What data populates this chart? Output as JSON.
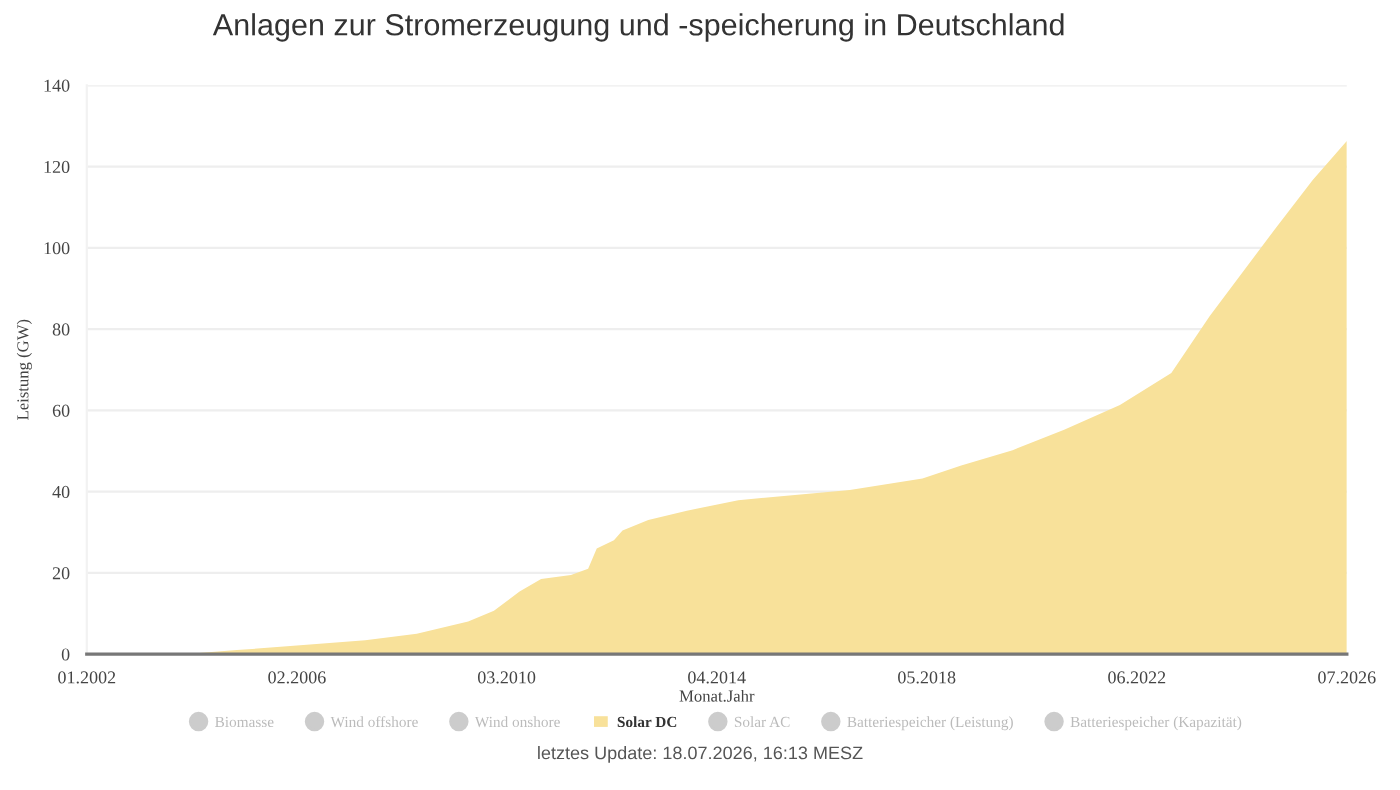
{
  "chart_data": {
    "type": "area",
    "title": "Anlagen zur Stromerzeugung und -speicherung in Deutschland",
    "xlabel": "Monat.Jahr",
    "ylabel": "Leistung (GW)",
    "annotations": [
      "letztes Update: 18.07.2026, 16:13 MESZ"
    ],
    "x": [
      "2002-01",
      "2004-01",
      "2004-12",
      "2006-02",
      "2007-06",
      "2008-06",
      "2009-06",
      "2009-12",
      "2010-06",
      "2010-11",
      "2011-06",
      "2011-10",
      "2011-12",
      "2012-04",
      "2012-06",
      "2012-12",
      "2013-09",
      "2014-09",
      "2016-11",
      "2018-04",
      "2019-01",
      "2020-01",
      "2021-01",
      "2022-02",
      "2023-02",
      "2023-11",
      "2025-02",
      "2025-11",
      "2026-07"
    ],
    "series": [
      {
        "name": "Biomasse",
        "color": "#cccccc",
        "type": "line",
        "values": [
          null,
          null,
          null,
          null,
          null,
          null,
          null,
          null,
          null,
          null,
          null,
          null,
          null,
          null,
          null,
          null,
          null,
          null,
          null,
          null,
          null,
          null,
          null,
          null,
          null,
          null,
          null,
          null,
          null
        ]
      },
      {
        "name": "Wind offshore",
        "color": "#cccccc",
        "type": "line",
        "values": [
          null,
          null,
          null,
          null,
          null,
          null,
          null,
          null,
          null,
          null,
          null,
          null,
          null,
          null,
          null,
          null,
          null,
          null,
          null,
          null,
          null,
          null,
          null,
          null,
          null,
          null,
          null,
          null,
          null
        ]
      },
      {
        "name": "Wind onshore",
        "color": "#cccccc",
        "type": "line",
        "values": [
          null,
          null,
          null,
          null,
          null,
          null,
          null,
          null,
          null,
          null,
          null,
          null,
          null,
          null,
          null,
          null,
          null,
          null,
          null,
          null,
          null,
          null,
          null,
          null,
          null,
          null,
          null,
          null,
          null
        ]
      },
      {
        "name": "Solar DC",
        "color": "#f8e19a",
        "values": [
          0,
          0.1,
          1,
          2.1,
          3.4,
          5,
          8,
          10.7,
          15.4,
          18.5,
          19.5,
          21,
          26,
          28,
          30.4,
          33,
          35.3,
          37.9,
          40.4,
          43.2,
          46.4,
          50.2,
          55.2,
          61.3,
          69.2,
          83.2,
          104.4,
          116.7,
          126.3
        ]
      },
      {
        "name": "Solar AC",
        "color": "#cccccc",
        "type": "line",
        "values": [
          null,
          null,
          null,
          null,
          null,
          null,
          null,
          null,
          null,
          null,
          null,
          null,
          null,
          null,
          null,
          null,
          null,
          null,
          null,
          null,
          null,
          null,
          null,
          null,
          null,
          null,
          null,
          null,
          null
        ]
      },
      {
        "name": "Batteriespeicher (Leistung)",
        "color": "#cccccc",
        "type": "line",
        "values": [
          null,
          null,
          null,
          null,
          null,
          null,
          null,
          null,
          null,
          null,
          null,
          null,
          null,
          null,
          null,
          null,
          null,
          null,
          null,
          null,
          null,
          null,
          null,
          null,
          null,
          null,
          null,
          null,
          null
        ]
      },
      {
        "name": "Batteriespeicher (Kapazität)",
        "color": "#cccccc",
        "type": "line",
        "values": [
          null,
          null,
          null,
          null,
          null,
          null,
          null,
          null,
          null,
          null,
          null,
          null,
          null,
          null,
          null,
          null,
          null,
          null,
          null,
          null,
          null,
          null,
          null,
          null,
          null,
          null,
          null,
          null,
          null
        ]
      }
    ],
    "xlim": [
      "2002-01",
      "2026-07"
    ],
    "xticks": [
      {
        "value": "2002-01",
        "label": "01.2002"
      },
      {
        "value": "2006-02",
        "label": "02.2006"
      },
      {
        "value": "2010-03",
        "label": "03.2010"
      },
      {
        "value": "2014-04",
        "label": "04.2014"
      },
      {
        "value": "2018-05",
        "label": "05.2018"
      },
      {
        "value": "2022-06",
        "label": "06.2022"
      },
      {
        "value": "2026-07",
        "label": "07.2026"
      }
    ],
    "ylim": [
      0,
      140
    ],
    "yticks": [
      0,
      20,
      40,
      60,
      80,
      100,
      120,
      140
    ],
    "grid": "y",
    "legend": "bottom"
  }
}
